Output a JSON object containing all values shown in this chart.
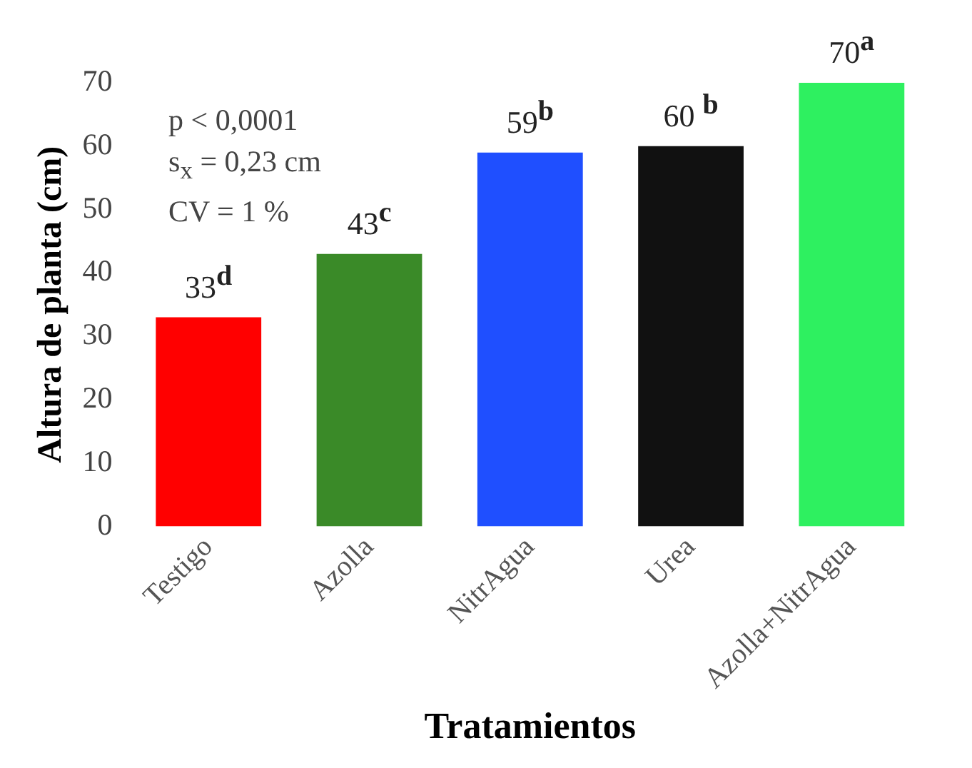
{
  "chart_data": {
    "type": "bar",
    "xlabel": "Tratamientos",
    "ylabel": "Altura de planta (cm)",
    "categories": [
      "Testigo",
      "Azolla",
      "NitrAgua",
      "Urea",
      "Azolla+NitrAgua"
    ],
    "values": [
      33,
      43,
      59,
      60,
      70
    ],
    "colors": [
      "#ff0000",
      "#3a8a28",
      "#1f4fff",
      "#111111",
      "#2ef060"
    ],
    "value_labels": [
      "33$^{d}$",
      "43$^{c}$",
      "59$^{b}$",
      "60 $^{b}$",
      "70$^{a}$"
    ],
    "ylim": [
      0,
      70
    ],
    "yticks": [
      0,
      10,
      20,
      30,
      40,
      50,
      60,
      70
    ],
    "grid": false,
    "legend": false,
    "annotations": [
      "p < 0,0001",
      "s$_{x}$ = 0,23 cm",
      "CV = 1 %"
    ]
  }
}
